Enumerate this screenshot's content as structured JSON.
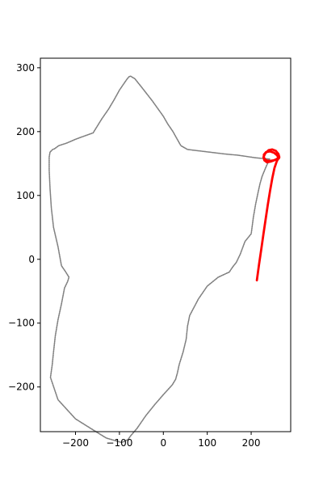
{
  "chart_data": {
    "type": "line",
    "title": "",
    "xlabel": "",
    "ylabel": "",
    "xlim": [
      -280,
      290
    ],
    "ylim": [
      -270,
      315
    ],
    "x_ticks": [
      -200,
      -100,
      0,
      100,
      200
    ],
    "x_tick_labels": [
      "−200",
      "−100",
      "0",
      "100",
      "200"
    ],
    "y_ticks": [
      -200,
      -100,
      0,
      100,
      200,
      300
    ],
    "y_tick_labels": [
      "−200",
      "−100",
      "0",
      "100",
      "200",
      "300"
    ],
    "grid": false,
    "series": [
      {
        "style": "dotted-gray",
        "color": "#808080",
        "x": [
          242,
          210,
          170,
          140,
          55,
          40,
          30,
          22,
          10,
          0,
          -25,
          -50,
          -65,
          -75,
          -78,
          -82,
          -88,
          -100,
          -112,
          -125,
          -140,
          -160,
          -180,
          -200,
          -220,
          -238,
          -248,
          -252,
          -258,
          -260,
          -260,
          -258,
          -255,
          -250,
          -240,
          -232,
          -222,
          -215,
          -218,
          -225,
          -232,
          -240,
          -246,
          -250,
          -253,
          -257,
          -240,
          -200,
          -165,
          -130,
          -95,
          -88,
          -80,
          -75,
          -60,
          -40,
          -20,
          0,
          20,
          28,
          32,
          36,
          45,
          52,
          55,
          60,
          80,
          100,
          125,
          150,
          158,
          166,
          175,
          186,
          200,
          205,
          210,
          216,
          220,
          225,
          234,
          242
        ],
        "y": [
          157,
          159,
          163,
          165,
          172,
          178,
          190,
          200,
          212,
          224,
          248,
          270,
          283,
          287,
          286,
          283,
          277,
          265,
          250,
          235,
          220,
          198,
          193,
          188,
          182,
          178,
          173,
          172,
          168,
          160,
          140,
          110,
          80,
          50,
          20,
          -10,
          -20,
          -28,
          -35,
          -45,
          -70,
          -95,
          -120,
          -145,
          -165,
          -185,
          -220,
          -250,
          -265,
          -280,
          -287,
          -285,
          -282,
          -277,
          -265,
          -245,
          -228,
          -212,
          -197,
          -188,
          -178,
          -165,
          -145,
          -125,
          -105,
          -88,
          -62,
          -42,
          -28,
          -20,
          -12,
          -5,
          8,
          28,
          40,
          66,
          86,
          106,
          118,
          130,
          145,
          157
        ]
      },
      {
        "style": "solid-red",
        "color": "#ff0000",
        "x": [
          213,
          218,
          223,
          228,
          233,
          238,
          243,
          248,
          253,
          258,
          261,
          263,
          264,
          262,
          256,
          248,
          240,
          232,
          228,
          230,
          236,
          244,
          252,
          258,
          262,
          259,
          252,
          243,
          234,
          229,
          229,
          234,
          242,
          251,
          259,
          263
        ],
        "y": [
          -33,
          -8,
          16,
          40,
          63,
          86,
          107,
          127,
          143,
          153,
          157,
          158,
          160,
          165,
          170,
          172,
          171,
          166,
          160,
          155,
          152,
          153,
          155,
          157,
          159,
          163,
          167,
          169,
          168,
          164,
          159,
          155,
          154,
          155,
          157,
          158
        ]
      }
    ]
  }
}
